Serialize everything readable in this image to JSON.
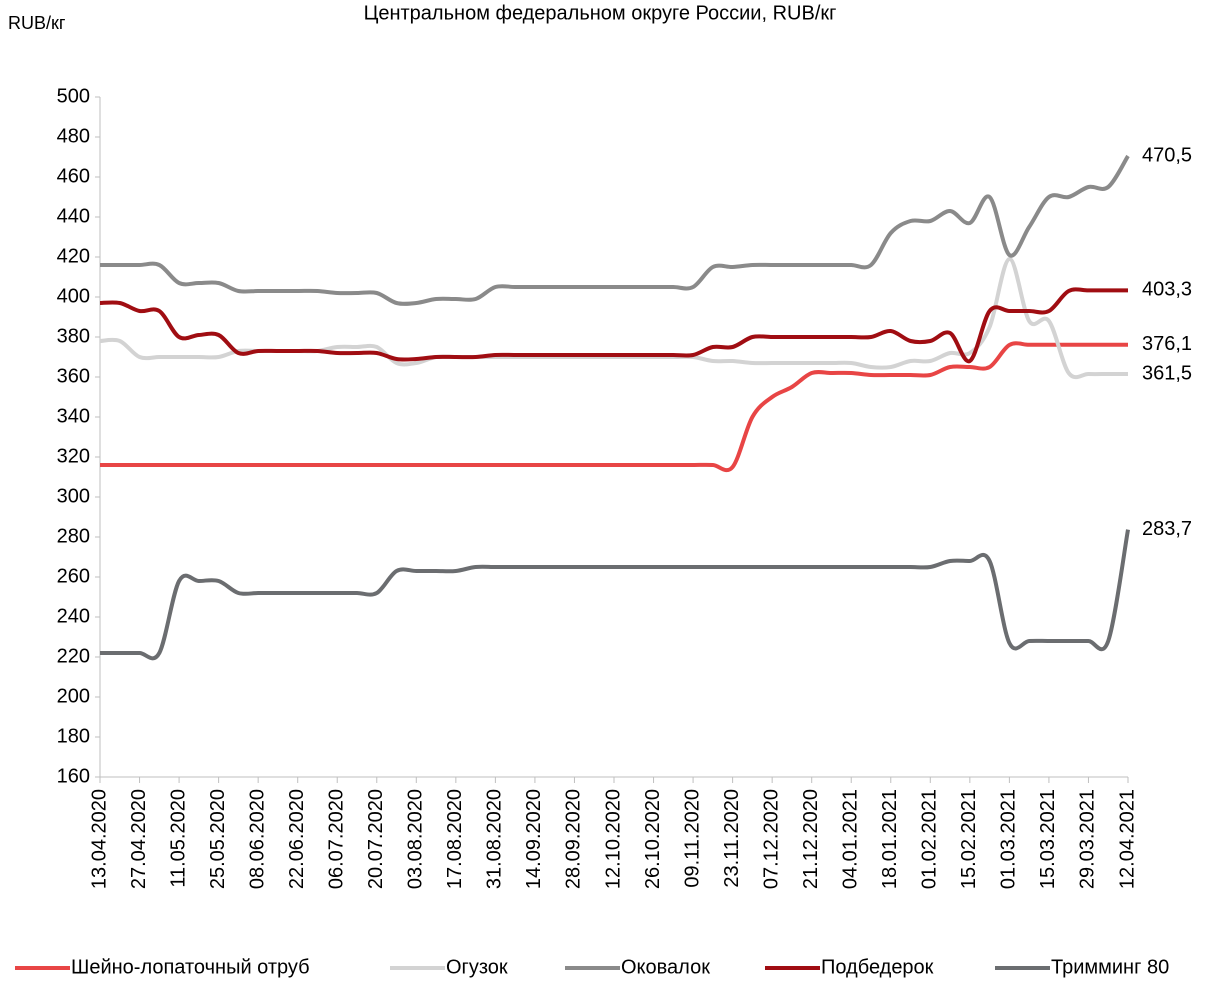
{
  "chart_data": {
    "type": "line",
    "title": "Центральном федеральном округе России, RUB/кг",
    "y_label": "RUB/кг",
    "categories": [
      "13.04.2020",
      null,
      "27.04.2020",
      null,
      "11.05.2020",
      null,
      "25.05.2020",
      null,
      "08.06.2020",
      null,
      "22.06.2020",
      null,
      "06.07.2020",
      null,
      "20.07.2020",
      null,
      "03.08.2020",
      null,
      "17.08.2020",
      null,
      "31.08.2020",
      null,
      "14.09.2020",
      null,
      "28.09.2020",
      null,
      "12.10.2020",
      null,
      "26.10.2020",
      null,
      "09.11.2020",
      null,
      "23.11.2020",
      null,
      "07.12.2020",
      null,
      "21.12.2020",
      null,
      "04.01.2021",
      null,
      "18.01.2021",
      null,
      "01.02.2021",
      null,
      "15.02.2021",
      null,
      "01.03.2021",
      null,
      "15.03.2021",
      null,
      "29.03.2021",
      null,
      "12.04.2021"
    ],
    "ylim": [
      160,
      500
    ],
    "yticks": [
      160,
      180,
      200,
      220,
      240,
      260,
      280,
      300,
      320,
      340,
      360,
      380,
      400,
      420,
      440,
      460,
      480,
      500
    ],
    "legend": "bottom",
    "series": [
      {
        "name": "Шейно-лопаточный отруб",
        "color": "#e84545",
        "values": [
          316,
          316,
          316,
          316,
          316,
          316,
          316,
          316,
          316,
          316,
          316,
          316,
          316,
          316,
          316,
          316,
          316,
          316,
          316,
          316,
          316,
          316,
          316,
          316,
          316,
          316,
          316,
          316,
          316,
          316,
          316,
          316,
          315,
          340,
          350,
          355,
          362,
          362,
          362,
          361,
          361,
          361,
          361,
          365,
          365,
          365,
          376,
          376.1,
          376.1,
          376.1,
          376.1,
          376.1,
          376.1
        ],
        "value_labels": [
          null,
          null,
          null,
          null,
          null,
          null,
          null,
          null,
          null,
          null,
          null,
          null,
          null,
          null,
          null,
          null,
          null,
          null,
          null,
          null,
          null,
          null,
          null,
          null,
          null,
          null,
          null,
          null,
          null,
          null,
          null,
          null,
          null,
          null,
          null,
          null,
          null,
          null,
          null,
          null,
          null,
          null,
          null,
          null,
          null,
          null,
          null,
          null,
          null,
          null,
          null,
          null,
          "376,1"
        ]
      },
      {
        "name": "Огузок",
        "color": "#d3d3d3",
        "values": [
          378,
          378,
          370,
          370,
          370,
          370,
          370,
          373,
          373,
          373,
          373,
          373,
          375,
          375,
          375,
          367,
          367,
          370,
          370,
          370,
          370,
          370,
          370,
          370,
          370,
          370,
          370,
          370,
          370,
          370,
          370,
          368,
          368,
          367,
          367,
          367,
          367,
          367,
          367,
          365,
          365,
          368,
          368,
          372,
          372,
          385,
          419,
          388,
          388,
          362,
          361.5,
          361.5,
          361.5
        ],
        "value_labels": [
          null,
          null,
          null,
          null,
          null,
          null,
          null,
          null,
          null,
          null,
          null,
          null,
          null,
          null,
          null,
          null,
          null,
          null,
          null,
          null,
          null,
          null,
          null,
          null,
          null,
          null,
          null,
          null,
          null,
          null,
          null,
          null,
          null,
          null,
          null,
          null,
          null,
          null,
          null,
          null,
          null,
          null,
          null,
          null,
          null,
          null,
          null,
          null,
          null,
          null,
          null,
          null,
          "361,5"
        ]
      },
      {
        "name": "Оковалок",
        "color": "#8a8a8a",
        "values": [
          416,
          416,
          416,
          416,
          407,
          407,
          407,
          403,
          403,
          403,
          403,
          403,
          402,
          402,
          402,
          397,
          397,
          399,
          399,
          399,
          405,
          405,
          405,
          405,
          405,
          405,
          405,
          405,
          405,
          405,
          405,
          415,
          415,
          416,
          416,
          416,
          416,
          416,
          416,
          416,
          432,
          438,
          438,
          443,
          437,
          450,
          421,
          435,
          450,
          450,
          455,
          455,
          470.5
        ],
        "value_labels": [
          null,
          null,
          null,
          null,
          null,
          null,
          null,
          null,
          null,
          null,
          null,
          null,
          null,
          null,
          null,
          null,
          null,
          null,
          null,
          null,
          null,
          null,
          null,
          null,
          null,
          null,
          null,
          null,
          null,
          null,
          null,
          null,
          null,
          null,
          null,
          null,
          null,
          null,
          null,
          null,
          null,
          null,
          null,
          null,
          null,
          null,
          null,
          null,
          null,
          null,
          null,
          null,
          "470,5"
        ]
      },
      {
        "name": "Подбедерок",
        "color": "#a00d12",
        "values": [
          397,
          397,
          393,
          393,
          380,
          381,
          381,
          372,
          373,
          373,
          373,
          373,
          372,
          372,
          372,
          369,
          369,
          370,
          370,
          370,
          371,
          371,
          371,
          371,
          371,
          371,
          371,
          371,
          371,
          371,
          371,
          375,
          375,
          380,
          380,
          380,
          380,
          380,
          380,
          380,
          383,
          378,
          378,
          382,
          368,
          393,
          393,
          393,
          393,
          403,
          403.3,
          403.3,
          403.3
        ],
        "value_labels": [
          null,
          null,
          null,
          null,
          null,
          null,
          null,
          null,
          null,
          null,
          null,
          null,
          null,
          null,
          null,
          null,
          null,
          null,
          null,
          null,
          null,
          null,
          null,
          null,
          null,
          null,
          null,
          null,
          null,
          null,
          null,
          null,
          null,
          null,
          null,
          null,
          null,
          null,
          null,
          null,
          null,
          null,
          null,
          null,
          null,
          null,
          null,
          null,
          null,
          null,
          null,
          null,
          "403,3"
        ]
      },
      {
        "name": "Тримминг 80",
        "color": "#6b6d70",
        "values": [
          222,
          222,
          222,
          222,
          258,
          258,
          258,
          252,
          252,
          252,
          252,
          252,
          252,
          252,
          252,
          263,
          263,
          263,
          263,
          265,
          265,
          265,
          265,
          265,
          265,
          265,
          265,
          265,
          265,
          265,
          265,
          265,
          265,
          265,
          265,
          265,
          265,
          265,
          265,
          265,
          265,
          265,
          265,
          268,
          268,
          268,
          227,
          228,
          228,
          228,
          228,
          228,
          283.7
        ],
        "value_labels": [
          null,
          null,
          null,
          null,
          null,
          null,
          null,
          null,
          null,
          null,
          null,
          null,
          null,
          null,
          null,
          null,
          null,
          null,
          null,
          null,
          null,
          null,
          null,
          null,
          null,
          null,
          null,
          null,
          null,
          null,
          null,
          null,
          null,
          null,
          null,
          null,
          null,
          null,
          null,
          null,
          null,
          null,
          null,
          null,
          null,
          null,
          null,
          null,
          null,
          null,
          null,
          null,
          "283,7"
        ]
      }
    ]
  }
}
